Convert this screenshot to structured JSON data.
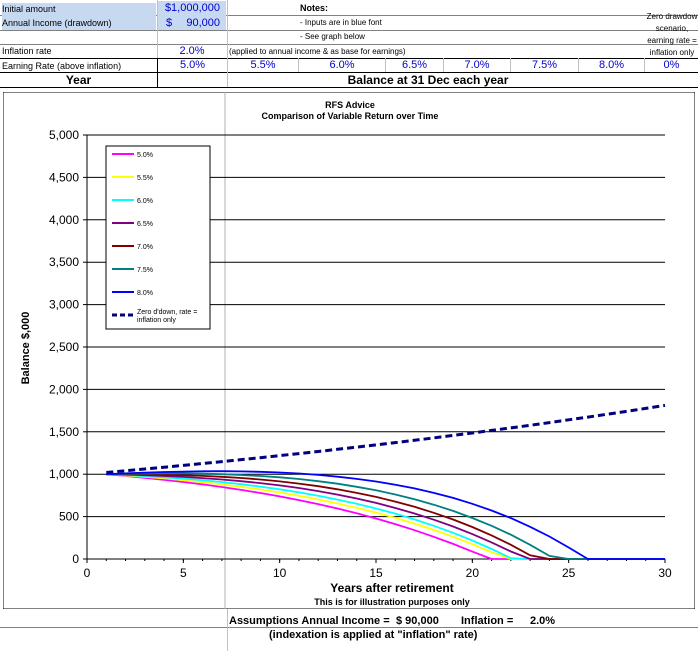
{
  "header": {
    "initial_amount_label": "Initial amount",
    "initial_amount_value": "$1,000,000",
    "annual_income_label": "Annual Income (drawdown)",
    "annual_income_currency": "$",
    "annual_income_value": "90,000",
    "notes_title": "Notes:",
    "note_1": "- Inputs are in blue font",
    "note_2": "- See graph below",
    "zero_drawdown_note_1": "Zero drawdow",
    "zero_drawdown_note_2": "scenario,",
    "zero_drawdown_note_3": "earning rate =",
    "zero_drawdown_note_4": "inflation only",
    "inflation_label": "Inflation rate",
    "inflation_value": "2.0%",
    "inflation_note": "(applied to annual income & as base for earnings)",
    "earning_label": "Earning Rate (above inflation)",
    "earning_rates": [
      "5.0%",
      "5.5%",
      "6.0%",
      "6.5%",
      "7.0%",
      "7.5%",
      "8.0%",
      "0%"
    ],
    "year_label": "Year",
    "balance_label": "Balance at 31 Dec each year"
  },
  "chart_data": {
    "type": "line",
    "title": "RFS Advice",
    "subtitle": "Comparison of Variable Return over Time",
    "xlabel": "Years after retirement",
    "xlabel_note": "This is for illustration purposes only",
    "ylabel": "Balance $,000",
    "xlim": [
      0,
      30
    ],
    "ylim": [
      0,
      5000
    ],
    "x_ticks": [
      0,
      5,
      10,
      15,
      20,
      25,
      30
    ],
    "y_ticks": [
      0,
      500,
      1000,
      1500,
      2000,
      2500,
      3000,
      3500,
      4000,
      4500,
      5000
    ],
    "y_tick_labels": [
      "0",
      "500",
      "1,000",
      "1,500",
      "2,000",
      "2,500",
      "3,000",
      "3,500",
      "4,000",
      "4,500",
      "5,000"
    ],
    "grid": "horizontal",
    "legend_position": "top-left",
    "x": [
      1,
      2,
      3,
      4,
      5,
      6,
      7,
      8,
      9,
      10,
      11,
      12,
      13,
      14,
      15,
      16,
      17,
      18,
      19,
      20,
      21,
      22,
      23,
      24,
      25,
      26,
      27,
      28,
      29,
      30
    ],
    "series": [
      {
        "name": "5.0%",
        "color": "#ff00ff",
        "dashed": false,
        "values": [
          1000,
          980,
          958,
          934,
          908,
          880,
          849,
          815,
          778,
          738,
          694,
          647,
          595,
          539,
          478,
          412,
          340,
          262,
          178,
          87,
          0,
          0,
          0,
          0,
          0,
          0,
          0,
          0,
          0,
          0
        ]
      },
      {
        "name": "5.5%",
        "color": "#ffff00",
        "dashed": false,
        "values": [
          1000,
          985,
          968,
          950,
          929,
          906,
          880,
          851,
          819,
          784,
          745,
          702,
          655,
          603,
          547,
          485,
          417,
          343,
          262,
          174,
          79,
          0,
          0,
          0,
          0,
          0,
          0,
          0,
          0,
          0
        ]
      },
      {
        "name": "6.0%",
        "color": "#00ffff",
        "dashed": false,
        "values": [
          1000,
          990,
          978,
          964,
          948,
          929,
          907,
          882,
          854,
          822,
          786,
          746,
          701,
          651,
          596,
          535,
          467,
          392,
          309,
          218,
          118,
          9,
          0,
          0,
          0,
          0,
          0,
          0,
          0,
          0
        ]
      },
      {
        "name": "6.5%",
        "color": "#800080",
        "dashed": false,
        "values": [
          1000,
          995,
          988,
          979,
          968,
          954,
          938,
          918,
          895,
          868,
          837,
          801,
          760,
          713,
          661,
          602,
          537,
          464,
          383,
          294,
          196,
          88,
          0,
          0,
          0,
          0,
          0,
          0,
          0,
          0
        ]
      },
      {
        "name": "7.0%",
        "color": "#800000",
        "dashed": false,
        "values": [
          1000,
          1000,
          998,
          994,
          988,
          980,
          969,
          955,
          937,
          915,
          889,
          858,
          822,
          780,
          732,
          677,
          615,
          545,
          466,
          377,
          278,
          167,
          44,
          0,
          0,
          0,
          0,
          0,
          0,
          0
        ]
      },
      {
        "name": "7.5%",
        "color": "#008080",
        "dashed": false,
        "values": [
          1000,
          1005,
          1008,
          1010,
          1009,
          1006,
          1000,
          991,
          979,
          963,
          943,
          918,
          888,
          852,
          810,
          761,
          705,
          640,
          567,
          484,
          391,
          286,
          168,
          37,
          0,
          0,
          0,
          0,
          0,
          0
        ]
      },
      {
        "name": "8.0%",
        "color": "#0000ff",
        "dashed": false,
        "values": [
          1000,
          1010,
          1019,
          1026,
          1031,
          1034,
          1035,
          1033,
          1028,
          1020,
          1008,
          992,
          971,
          945,
          914,
          876,
          832,
          780,
          720,
          651,
          572,
          482,
          380,
          265,
          136,
          0,
          0,
          0,
          0,
          0
        ]
      },
      {
        "name": "Zero d'down, rate = inflation only",
        "color": "#000080",
        "dashed": true,
        "values": [
          1020,
          1040,
          1061,
          1082,
          1104,
          1126,
          1149,
          1172,
          1195,
          1219,
          1243,
          1268,
          1294,
          1319,
          1346,
          1373,
          1400,
          1428,
          1457,
          1486,
          1516,
          1546,
          1577,
          1608,
          1641,
          1673,
          1707,
          1741,
          1776,
          1811
        ]
      }
    ]
  },
  "footer": {
    "assumptions_label": "Assumptions Annual Income =",
    "assumptions_value": "$ 90,000",
    "inflation_label": "Inflation =",
    "inflation_value": "2.0%",
    "indexation_note": "(indexation is applied at \"inflation\" rate)"
  }
}
